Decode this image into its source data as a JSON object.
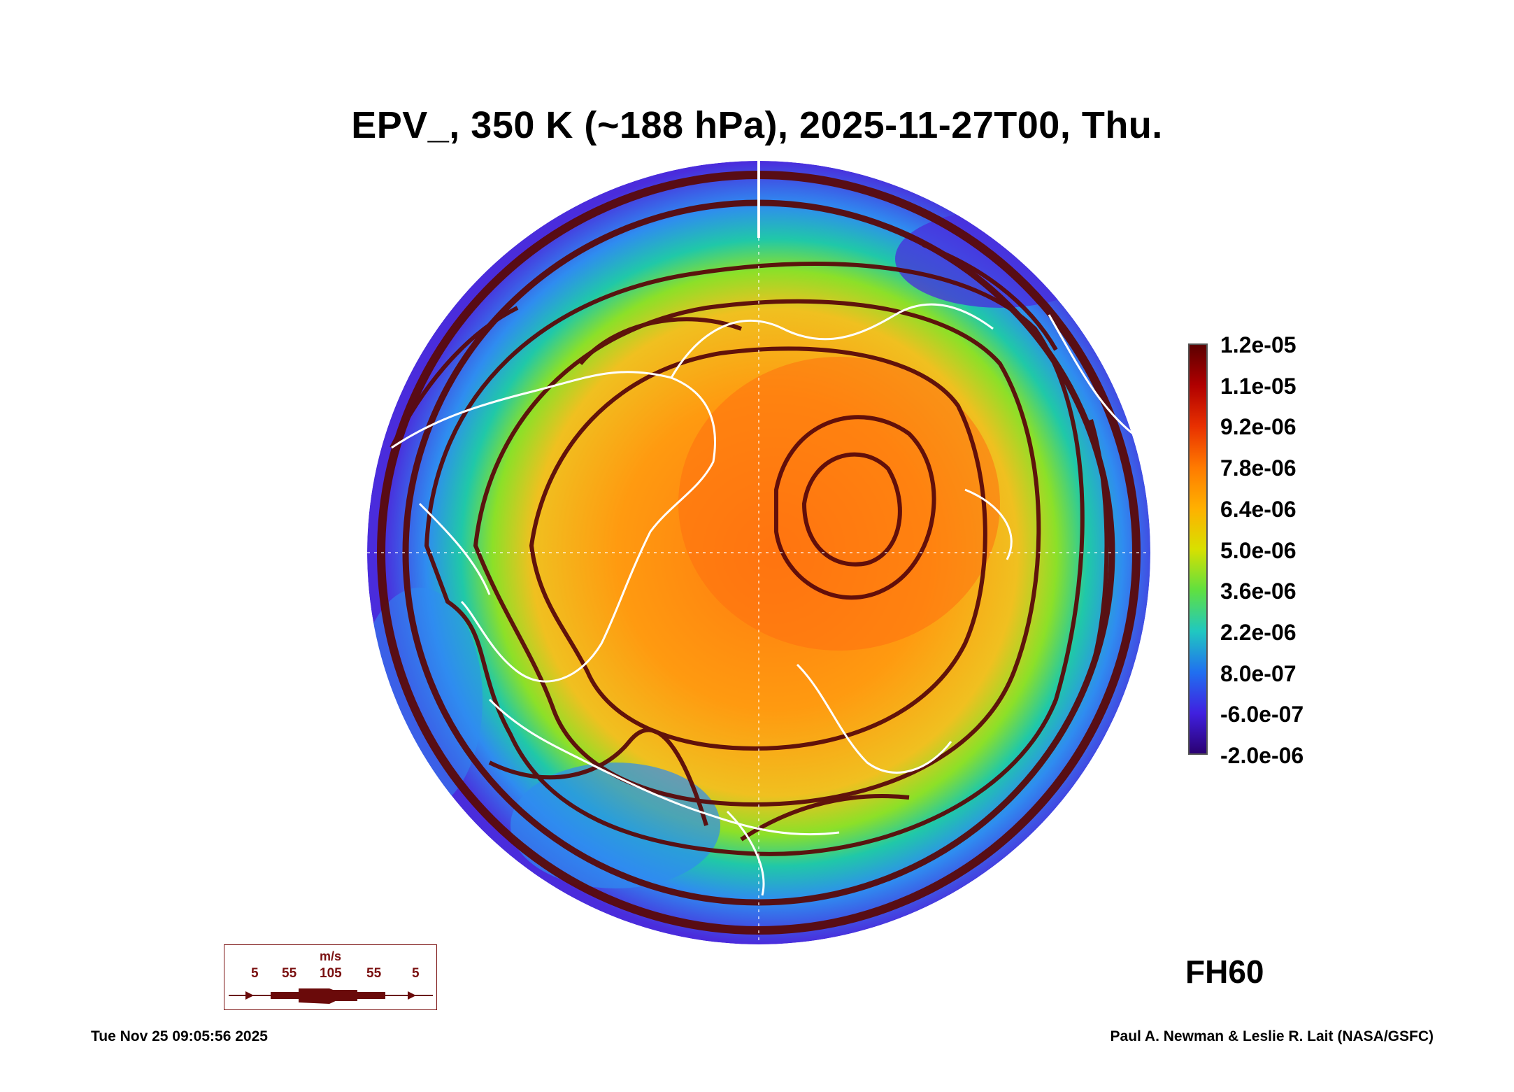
{
  "title": "EPV_, 350 K (~188 hPa), 2025-11-27T00, Thu.",
  "colorbar": {
    "labels": [
      "1.2e-05",
      "1.1e-05",
      "9.2e-06",
      "7.8e-06",
      "6.4e-06",
      "5.0e-06",
      "3.6e-06",
      "2.2e-06",
      "8.0e-07",
      "-6.0e-07",
      "-2.0e-06"
    ],
    "colors": [
      "#5a0000",
      "#b00000",
      "#e83000",
      "#ff7a00",
      "#ffb000",
      "#d8e000",
      "#60e040",
      "#20c8c0",
      "#2070f0",
      "#4020e0",
      "#2a0070"
    ]
  },
  "forecast_hour": "FH60",
  "wind_legend": {
    "unit": "m/s",
    "values": [
      "5",
      "55",
      "105",
      "55",
      "5"
    ],
    "color": "#6a0a0a"
  },
  "footer": {
    "timestamp": "Tue Nov 25 09:05:56 2025",
    "credit": "Paul A. Newman & Leslie R. Lait (NASA/GSFC)"
  },
  "map": {
    "projection": "north-polar-orthographic",
    "background_colors": [
      "#4a2cdc",
      "#2f8cf0",
      "#20c8a8",
      "#8ce028",
      "#f0c020",
      "#ff9a10",
      "#ff7a10"
    ],
    "streamline_color": "#5a0a0a",
    "coastline_color": "#ffffff"
  }
}
